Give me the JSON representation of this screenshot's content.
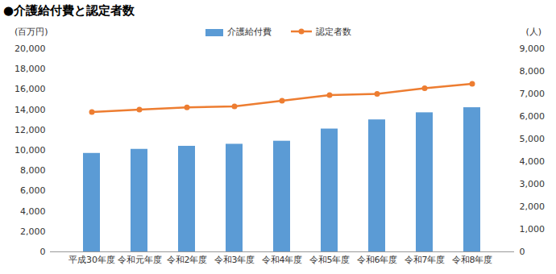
{
  "chart_data": {
    "type": "bar",
    "title": "●介護給付費と認定者数",
    "categories": [
      "平成30年度",
      "令和元年度",
      "令和2年度",
      "令和3年度",
      "令和4年度",
      "令和5年度",
      "令和6年度",
      "令和7年度",
      "令和8年度"
    ],
    "series": [
      {
        "name": "介護給付費",
        "type": "bar",
        "color": "#5b9bd5",
        "values": [
          9700,
          10100,
          10400,
          10600,
          10900,
          12100,
          13000,
          13700,
          14200
        ]
      },
      {
        "name": "認定者数",
        "type": "line",
        "axis": "y2",
        "color": "#ed7d31",
        "marker": "circle",
        "values": [
          6200,
          6300,
          6400,
          6450,
          6700,
          6950,
          7000,
          7250,
          7450
        ]
      }
    ],
    "y_label": "(百万円)",
    "y2_label": "(人)",
    "ylim": [
      0,
      20000
    ],
    "yticks": [
      0,
      {
        "value": 2000,
        "label": "2,000"
      },
      {
        "value": 4000,
        "label": "4,000"
      },
      {
        "value": 6000,
        "label": "6,000"
      },
      {
        "value": 8000,
        "label": "8,000"
      },
      {
        "value": 10000,
        "label": "10,000"
      },
      {
        "value": 12000,
        "label": "12,000"
      },
      {
        "value": 14000,
        "label": "14,000"
      },
      {
        "value": 16000,
        "label": "16,000"
      },
      {
        "value": 18000,
        "label": "18,000"
      },
      {
        "value": 20000,
        "label": "20,000"
      }
    ],
    "y2lim": [
      0,
      9000
    ],
    "y2ticks": [
      0,
      {
        "value": 1000,
        "label": "1,000"
      },
      {
        "value": 2000,
        "label": "2,000"
      },
      {
        "value": 3000,
        "label": "3,000"
      },
      {
        "value": 4000,
        "label": "4,000"
      },
      {
        "value": 5000,
        "label": "5,000"
      },
      {
        "value": 6000,
        "label": "6,000"
      },
      {
        "value": 7000,
        "label": "7,000"
      },
      {
        "value": 8000,
        "label": "8,000"
      },
      {
        "value": 9000,
        "label": "9,000"
      }
    ],
    "grid": false,
    "legend": "top"
  }
}
